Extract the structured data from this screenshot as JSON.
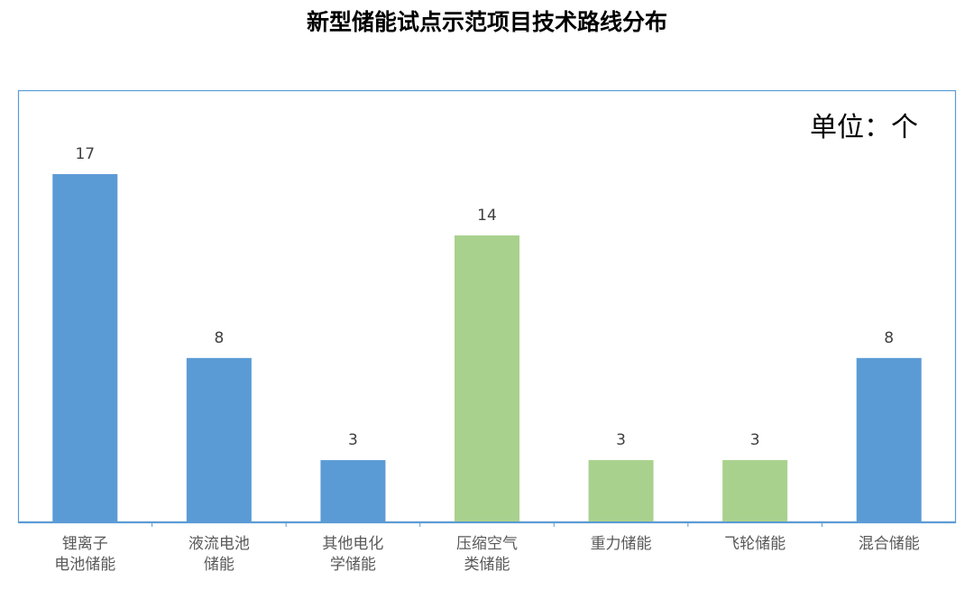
{
  "chart_data": {
    "type": "bar",
    "title": "新型储能试点示范项目技术路线分布",
    "unit_note": "单位：个",
    "categories": [
      "锂离子\n电池储能",
      "液流电池\n储能",
      "其他电化\n学储能",
      "压缩空气\n类储能",
      "重力储能",
      "飞轮储能",
      "混合储能"
    ],
    "values": [
      17,
      8,
      3,
      14,
      3,
      3,
      8
    ],
    "colors": [
      "#5b9bd5",
      "#5b9bd5",
      "#5b9bd5",
      "#a9d18e",
      "#a9d18e",
      "#a9d18e",
      "#5b9bd5"
    ]
  }
}
